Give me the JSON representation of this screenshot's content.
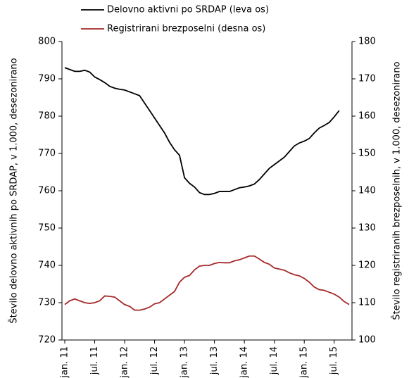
{
  "chart_data": {
    "type": "line",
    "y_label": "Število delovno aktivnih po SRDAP, v 1.000, desezonirano",
    "y2_label": "Število registriranih brezposelnih, v 1.000, desezonirano",
    "categories": [
      "jan. 11",
      null,
      null,
      null,
      null,
      null,
      "jul. 11",
      null,
      null,
      null,
      null,
      null,
      "jan. 12",
      null,
      null,
      null,
      null,
      null,
      "jul. 12",
      null,
      null,
      null,
      null,
      null,
      "jan. 13",
      null,
      null,
      null,
      null,
      null,
      "jul. 13",
      null,
      null,
      null,
      null,
      null,
      "jan. 14",
      null,
      null,
      null,
      null,
      null,
      "jul. 14",
      null,
      null,
      null,
      null,
      null,
      "jan. 15",
      null,
      null,
      null,
      null,
      null,
      "jul. 15",
      null,
      null,
      null
    ],
    "series": [
      {
        "name": "Delovno aktivni po SRDAP (leva os)",
        "color": "#000000",
        "values": [
          793,
          792.5,
          792,
          792,
          792.3,
          791.8,
          790.5,
          789.8,
          789,
          788,
          787.5,
          787.2,
          787,
          786.5,
          786,
          785.5,
          783.5,
          781.5,
          779.5,
          777.5,
          775.5,
          773,
          771,
          769.5,
          763.5,
          762,
          761,
          759.5,
          759,
          759,
          759.3,
          759.8,
          759.8,
          759.8,
          760.3,
          760.8,
          761,
          761.3,
          761.8,
          763,
          764.5,
          766,
          767,
          768,
          769,
          770.5,
          772,
          772.8,
          773.3,
          774,
          775.5,
          776.8,
          777.5,
          778.3,
          779.8,
          781.5,
          null,
          null
        ]
      },
      {
        "name": "Registrirani brezposelni (desna os)",
        "color": "#a52a2a",
        "axis": "y2",
        "values": [
          109.5,
          110.5,
          111,
          110.5,
          110,
          109.8,
          110,
          110.5,
          111.8,
          111.7,
          111.5,
          110.5,
          109.5,
          109,
          108,
          108,
          108.3,
          108.8,
          109.7,
          110,
          111,
          112,
          113,
          115.5,
          116.8,
          117.3,
          118.8,
          119.8,
          120,
          120,
          120.5,
          120.8,
          120.7,
          120.7,
          121.2,
          121.5,
          122,
          122.5,
          122.5,
          121.7,
          120.8,
          120.3,
          119.3,
          119,
          118.7,
          118,
          117.5,
          117.2,
          116.5,
          115.5,
          114.2,
          113.5,
          113.3,
          112.8,
          112.3,
          111.5,
          110.3,
          109.5
        ]
      }
    ],
    "ylim": [
      720,
      800
    ],
    "yticks": [
      720,
      730,
      740,
      750,
      760,
      770,
      780,
      790,
      800
    ],
    "y2lim": [
      100,
      180
    ],
    "y2ticks": [
      100,
      110,
      120,
      130,
      140,
      150,
      160,
      170,
      180
    ],
    "grid": false,
    "legend": "top"
  }
}
